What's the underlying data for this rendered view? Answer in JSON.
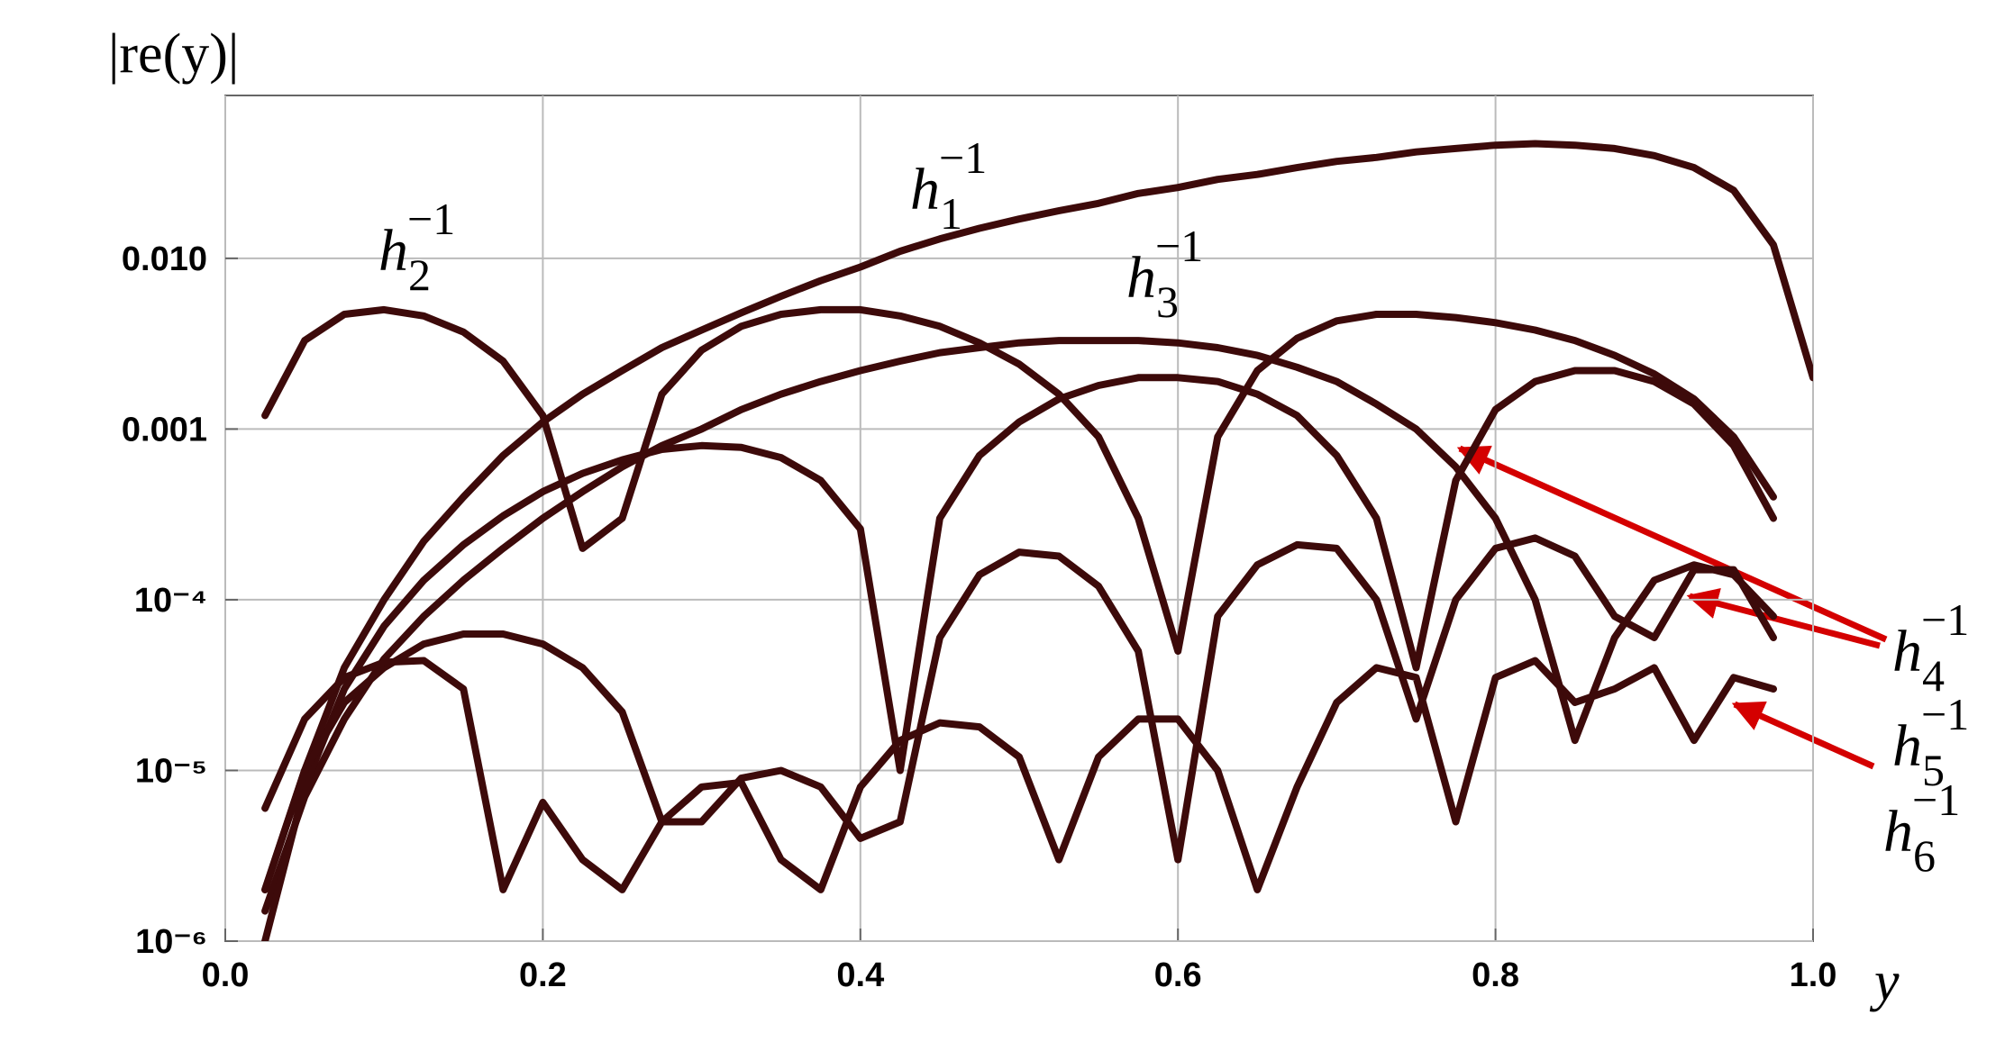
{
  "chart_data": {
    "type": "line",
    "y_label": "|re(y)|",
    "x_label": "y",
    "log_y": true,
    "grid": true,
    "color": "#3d0a0a",
    "xlim": [
      0,
      1
    ],
    "xticks": [
      {
        "value": 0,
        "label": "0.0"
      },
      0.2,
      0.4,
      0.6,
      0.8,
      {
        "value": 1,
        "label": "1.0"
      }
    ],
    "ylim": [
      1e-06,
      0.09
    ],
    "yticks": [
      {
        "value": 1e-06,
        "label": "10⁻⁶"
      },
      {
        "value": 1e-05,
        "label": "10⁻⁵"
      },
      {
        "value": 0.0001,
        "label": "10⁻⁴"
      },
      {
        "value": 0.001,
        "label": "0.001"
      },
      {
        "value": 0.01,
        "label": "0.010"
      }
    ],
    "x": [
      0,
      0.025,
      0.05,
      0.075,
      0.1,
      0.125,
      0.15,
      0.175,
      0.2,
      0.225,
      0.25,
      0.275,
      0.3,
      0.325,
      0.35,
      0.375,
      0.4,
      0.425,
      0.45,
      0.475,
      0.5,
      0.525,
      0.55,
      0.575,
      0.6,
      0.625,
      0.65,
      0.675,
      0.7,
      0.725,
      0.75,
      0.775,
      0.8,
      0.825,
      0.85,
      0.875,
      0.9,
      0.925,
      0.95,
      0.975,
      1.0
    ],
    "series": [
      {
        "values": [
          null,
          2e-06,
          1e-05,
          4e-05,
          0.0001,
          0.00022,
          0.0004,
          0.0007,
          0.0011,
          0.0016,
          0.0022,
          0.003,
          0.0038,
          0.0048,
          0.006,
          0.0074,
          0.0089,
          0.011,
          0.013,
          0.015,
          0.017,
          0.019,
          0.021,
          0.024,
          0.026,
          0.029,
          0.031,
          0.034,
          0.037,
          0.039,
          0.042,
          0.044,
          0.046,
          0.047,
          0.046,
          0.044,
          0.04,
          0.034,
          0.025,
          0.012,
          0.002
        ]
      },
      {
        "values": [
          null,
          0.0012,
          0.0033,
          0.0047,
          0.005,
          0.0046,
          0.0037,
          0.0025,
          0.0012,
          0.0002,
          0.0003,
          0.0016,
          0.0029,
          0.004,
          0.0047,
          0.005,
          0.005,
          0.0046,
          0.004,
          0.0032,
          0.0024,
          0.0016,
          0.0009,
          0.0003,
          5e-05,
          0.0009,
          0.0022,
          0.0034,
          0.0043,
          0.0047,
          0.0047,
          0.0045,
          0.0042,
          0.0038,
          0.0033,
          0.0027,
          0.0021,
          0.0015,
          0.0009,
          0.0004,
          null
        ]
      },
      {
        "values": [
          null,
          1.5e-06,
          7e-06,
          2e-05,
          4.5e-05,
          8e-05,
          0.00013,
          0.0002,
          0.0003,
          0.00043,
          0.0006,
          0.0008,
          0.001,
          0.0013,
          0.0016,
          0.0019,
          0.0022,
          0.0025,
          0.0028,
          0.003,
          0.0032,
          0.0033,
          0.0033,
          0.0033,
          0.0032,
          0.003,
          0.0027,
          0.0023,
          0.0019,
          0.0014,
          0.001,
          0.0006,
          0.0003,
          0.0001,
          1.5e-05,
          6e-05,
          0.00013,
          0.00016,
          0.00014,
          8e-05,
          null
        ]
      },
      {
        "values": [
          null,
          1e-06,
          8e-06,
          3e-05,
          7e-05,
          0.00013,
          0.00021,
          0.00031,
          0.00043,
          0.00055,
          0.00066,
          0.00076,
          0.0008,
          0.00078,
          0.00068,
          0.0005,
          0.00026,
          1e-05,
          0.0003,
          0.0007,
          0.0011,
          0.0015,
          0.0018,
          0.002,
          0.002,
          0.0019,
          0.0016,
          0.0012,
          0.0007,
          0.0003,
          4e-05,
          0.0005,
          0.0013,
          0.0019,
          0.0022,
          0.0022,
          0.0019,
          0.0014,
          0.0008,
          0.0003,
          null
        ]
      },
      {
        "values": [
          null,
          2e-06,
          1e-05,
          2.5e-05,
          4e-05,
          5.5e-05,
          6.3e-05,
          6.3e-05,
          5.5e-05,
          4e-05,
          2.2e-05,
          5e-06,
          5e-06,
          9e-06,
          1e-05,
          8e-06,
          4e-06,
          5e-06,
          6e-05,
          0.00014,
          0.00019,
          0.00018,
          0.00012,
          5e-05,
          3e-06,
          8e-05,
          0.00016,
          0.00021,
          0.0002,
          0.0001,
          2e-05,
          0.0001,
          0.0002,
          0.00023,
          0.00018,
          8e-05,
          6e-05,
          0.00015,
          0.00015,
          6e-05,
          null
        ]
      },
      {
        "values": [
          null,
          6e-06,
          2e-05,
          3.5e-05,
          4.3e-05,
          4.4e-05,
          3e-05,
          2e-06,
          6.5e-06,
          3e-06,
          2e-06,
          5e-06,
          8e-06,
          8.5e-06,
          3e-06,
          2e-06,
          8e-06,
          1.5e-05,
          1.9e-05,
          1.8e-05,
          1.2e-05,
          3e-06,
          1.2e-05,
          2e-05,
          2e-05,
          1e-05,
          2e-06,
          8e-06,
          2.5e-05,
          4e-05,
          3.5e-05,
          5e-06,
          3.5e-05,
          4.4e-05,
          2.5e-05,
          3e-05,
          4e-05,
          1.5e-05,
          3.5e-05,
          3e-05,
          null
        ]
      }
    ],
    "annotations": [
      {
        "text": "h",
        "sub": "1",
        "sup": "−1"
      },
      {
        "text": "h",
        "sub": "2",
        "sup": "−1"
      },
      {
        "text": "h",
        "sub": "3",
        "sup": "−1"
      },
      {
        "text": "h",
        "sub": "4",
        "sup": "−1"
      },
      {
        "text": "h",
        "sub": "5",
        "sup": "−1"
      },
      {
        "text": "h",
        "sub": "6",
        "sup": "−1"
      }
    ]
  }
}
